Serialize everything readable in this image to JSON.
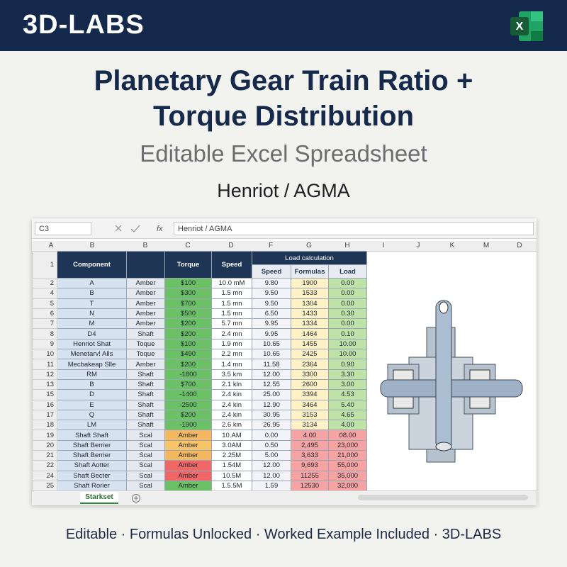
{
  "header": {
    "brand": "3D-LABS",
    "app_icon": "X"
  },
  "title": {
    "line1": "Planetary Gear Train Ratio +",
    "line2": "Torque Distribution"
  },
  "subtitle": "Editable Excel Spreadsheet",
  "standard": "Henriot / AGMA",
  "spreadsheet": {
    "name_box": "C3",
    "fx": "fx",
    "formula": "Henriot / AGMA",
    "column_letters": [
      "A",
      "B",
      "B",
      "C",
      "D",
      "F",
      "G",
      "H",
      "I",
      "J",
      "K",
      "M",
      "D"
    ],
    "group_header": "Load calculation",
    "headers": {
      "component": "Component",
      "torque": "Torque",
      "speed": "Speed",
      "sub": [
        "Speed",
        "Formulas",
        "Load"
      ]
    },
    "row_numbers": [
      "1",
      "2",
      "4",
      "5",
      "6",
      "7",
      "8",
      "9",
      "10",
      "11",
      "12",
      "13",
      "15",
      "16",
      "17",
      "18",
      "19",
      "20",
      "21",
      "22",
      "24",
      "25"
    ],
    "rows": [
      [
        "A",
        "Amber",
        "$100",
        "10.0 mM",
        "9.80",
        "1900",
        "0.00"
      ],
      [
        "B",
        "Amber",
        "$300",
        "1.5 mn",
        "9.50",
        "1533",
        "0.00"
      ],
      [
        "T",
        "Amber",
        "$700",
        "1.5 mn",
        "9.50",
        "1304",
        "0.00"
      ],
      [
        "N",
        "Amber",
        "$500",
        "1.5 mn",
        "6.50",
        "1433",
        "0.30"
      ],
      [
        "M",
        "Amber",
        "$200",
        "5.7 mn",
        "9.95",
        "1334",
        "0.00"
      ],
      [
        "D4",
        "Shaft",
        "$200",
        "2.4 mn",
        "9.95",
        "1464",
        "0.10"
      ],
      [
        "Henriot Shat",
        "Toque",
        "$100",
        "1.9 mn",
        "10.65",
        "1455",
        "10.00"
      ],
      [
        "Menetarv! Alls",
        "Toque",
        "$490",
        "2.2 mn",
        "10.65",
        "2425",
        "10.00"
      ],
      [
        "Mecbakeap Slle",
        "Amber",
        "$200",
        "1.4 mn",
        "11.58",
        "2364",
        "0.90"
      ],
      [
        "RM",
        "Shaft",
        "-1800",
        "3.5 km",
        "12.00",
        "3300",
        "3.30"
      ],
      [
        "B",
        "Shaft",
        "$700",
        "2.1 kln",
        "12.55",
        "2600",
        "3.00"
      ],
      [
        "D",
        "Shaft",
        "-1400",
        "2.4 kin",
        "25.00",
        "3394",
        "4.53"
      ],
      [
        "E",
        "Shaft",
        "-2500",
        "2.4 kin",
        "12.90",
        "3464",
        "5.40"
      ],
      [
        "Q",
        "Shaft",
        "$200",
        "2.4 kin",
        "30.95",
        "3153",
        "4.65"
      ],
      [
        "LM",
        "Shaft",
        "-1900",
        "2.6 kin",
        "26.95",
        "3134",
        "4.00"
      ],
      [
        "Shaft Shaft",
        "Scal",
        "Amber",
        "10.AM",
        "0.00",
        "4.00",
        "08.00"
      ],
      [
        "Shaft Berrier",
        "Scal",
        "Amber",
        "3.0AM",
        "0.50",
        "2,495",
        "23,000"
      ],
      [
        "Shaft Berrier",
        "Scal",
        "Amber",
        "2.25M",
        "5.00",
        "3,633",
        "21,000"
      ],
      [
        "Shaft Aotter",
        "Scal",
        "Amber",
        "1.54M",
        "12.00",
        "9,693",
        "55,000"
      ],
      [
        "Shaft Becter",
        "Scal",
        "Amber",
        "10.5M",
        "12.00",
        "11255",
        "35,000"
      ],
      [
        "Shaft Rorier",
        "Scal",
        "Amber",
        "1.5.5M",
        "1.59",
        "12530",
        "32,000"
      ]
    ],
    "sheet_tab": "Starkset"
  },
  "footer": "Editable · Formulas Unlocked · Worked Example Included · 3D-LABS"
}
